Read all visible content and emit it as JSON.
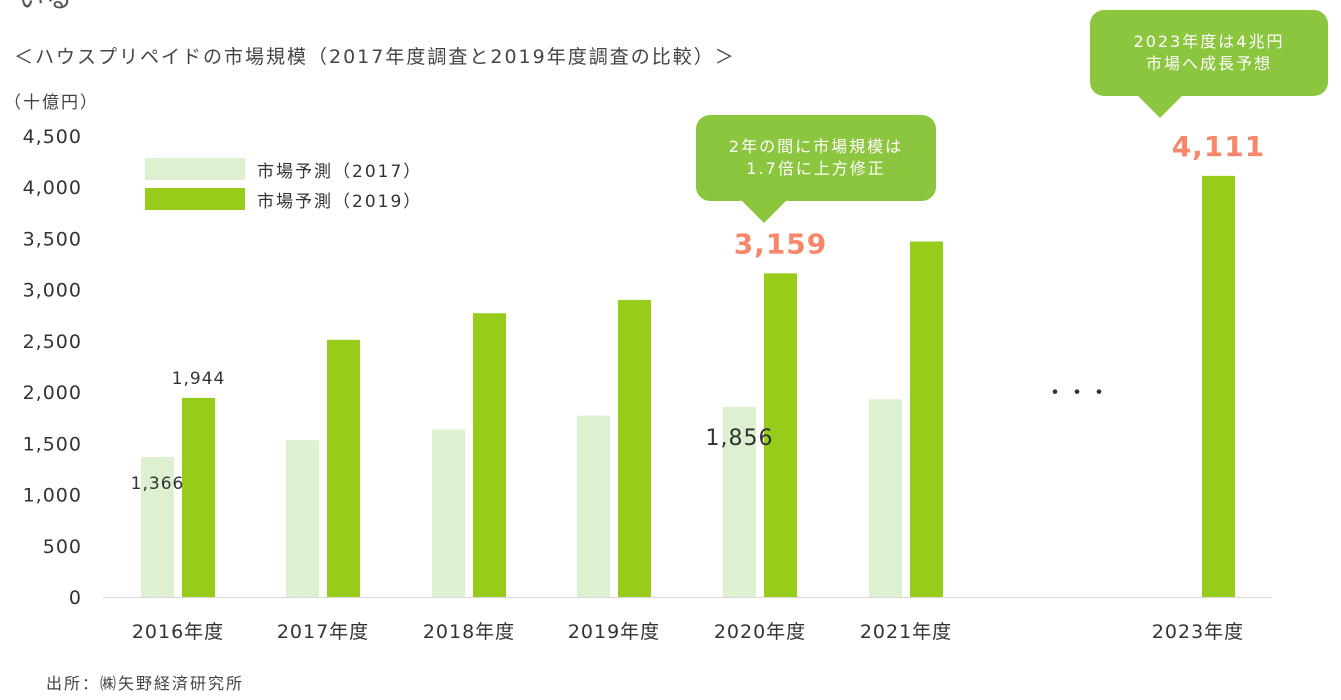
{
  "page": {
    "top_fragment": "いる",
    "title": "＜ハウスプリペイドの市場規模（2017年度調査と2019年度調査の比較）＞",
    "unit": "（十億円）",
    "source": "出所：㈱矢野経済研究所",
    "ellipsis": "・・・"
  },
  "callouts": {
    "c2020": {
      "line1": "2年の間に市場規模は",
      "line2": "1.7倍に上方修正"
    },
    "c2023": {
      "line1": "2023年度は4兆円",
      "line2": "市場へ成長予想"
    }
  },
  "chart_data": {
    "type": "bar",
    "categories": [
      "2016年度",
      "2017年度",
      "2018年度",
      "2019年度",
      "2020年度",
      "2021年度",
      "2023年度"
    ],
    "ylim": [
      0,
      4500
    ],
    "yticks": [
      0,
      500,
      1000,
      1500,
      2000,
      2500,
      3000,
      3500,
      4000,
      4500
    ],
    "ytick_labels": [
      "0",
      "500",
      "1,000",
      "1,500",
      "2,000",
      "2,500",
      "3,000",
      "3,500",
      "4,000",
      "4,500"
    ],
    "grid": false,
    "legend_position": "top-left",
    "series": [
      {
        "name": "市場予測（2017）",
        "color": "#ddf0cf",
        "values": [
          1366,
          1530,
          1635,
          1770,
          1856,
          1930,
          null
        ]
      },
      {
        "name": "市場予測（2019）",
        "color": "#97cc1a",
        "values": [
          1944,
          2510,
          2770,
          2900,
          3159,
          3470,
          4111
        ]
      }
    ],
    "data_labels": [
      {
        "series": 0,
        "index": 0,
        "text": "1,366",
        "style": "small"
      },
      {
        "series": 1,
        "index": 0,
        "text": "1,944",
        "style": "small"
      },
      {
        "series": 0,
        "index": 4,
        "text": "1,856",
        "style": "medium"
      },
      {
        "series": 1,
        "index": 4,
        "text": "3,159",
        "style": "highlight",
        "color": "#f7876b"
      },
      {
        "series": 1,
        "index": 6,
        "text": "4,111",
        "style": "highlight",
        "color": "#f7876b"
      }
    ]
  }
}
